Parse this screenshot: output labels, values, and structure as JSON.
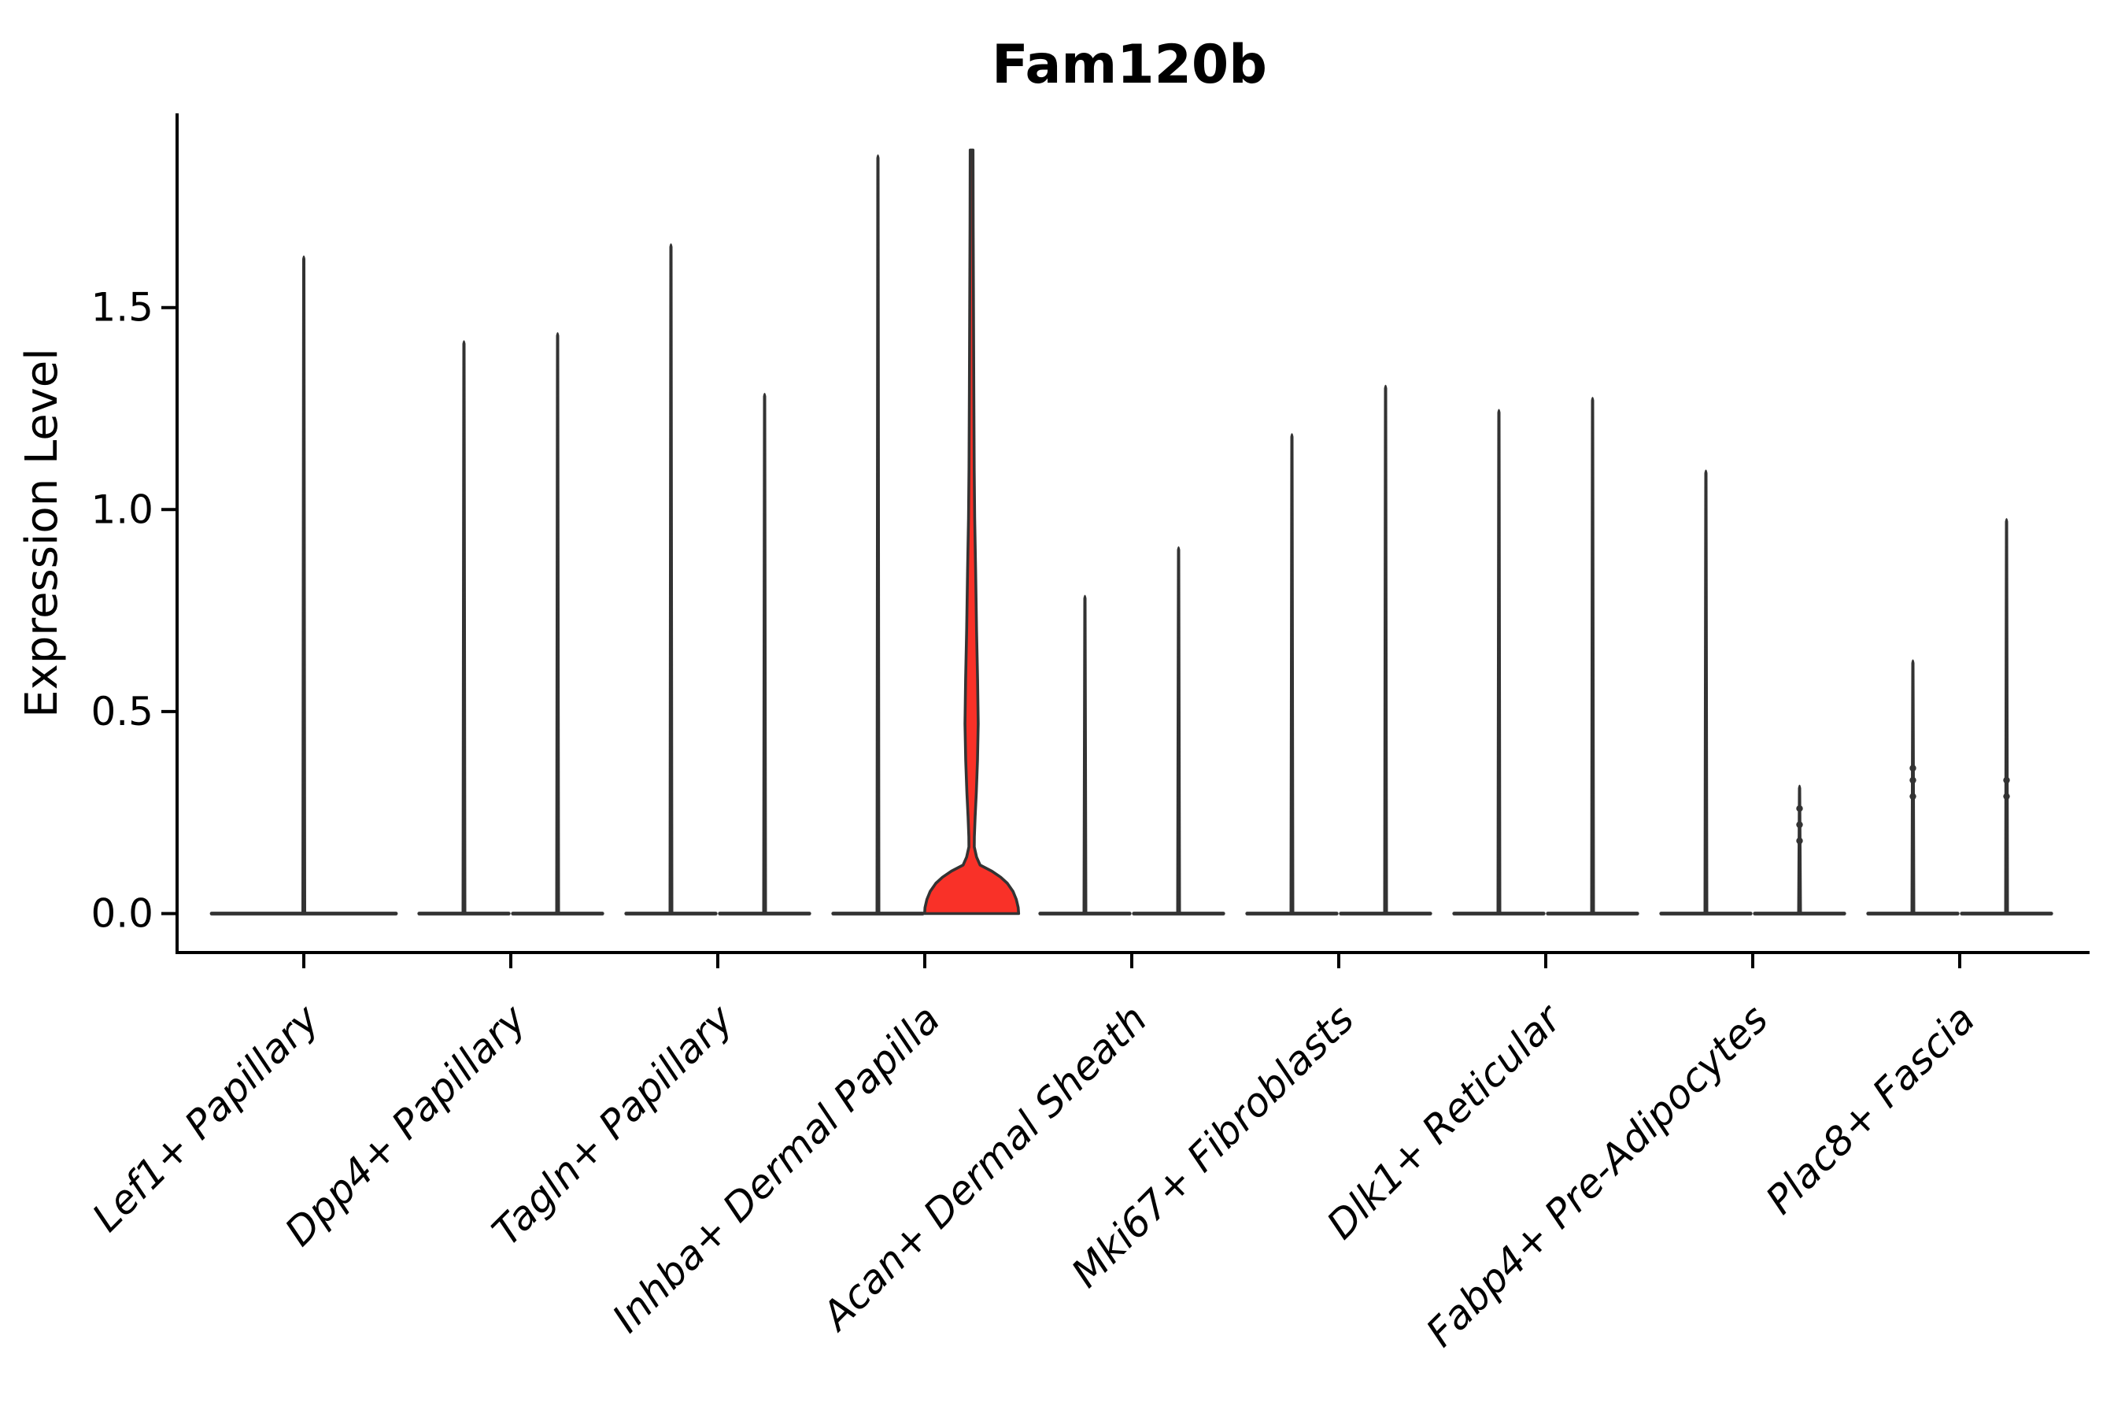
{
  "chart_data": {
    "type": "violin",
    "title": "Fam120b",
    "ylabel": "Expression Level",
    "xlabel": "",
    "ylim": [
      0,
      1.98
    ],
    "yticks": [
      {
        "label": "0.0",
        "value": 0.0
      },
      {
        "label": "0.5",
        "value": 0.5
      },
      {
        "label": "1.0",
        "value": 1.0
      },
      {
        "label": "1.5",
        "value": 1.5
      }
    ],
    "grid": false,
    "legend_position": "none",
    "style": {
      "violin_outline_color": "#333333",
      "axis_color": "#000000",
      "text_color": "#000000",
      "highlight_fill_color": "#f93128",
      "background_color": "#ffffff"
    },
    "categories": [
      {
        "label": "Lef1+ Papillary",
        "violins": [
          {
            "position": "center",
            "max_expression": 1.63,
            "highlighted": false,
            "point_values": []
          }
        ]
      },
      {
        "label": "Dpp4+ Papillary",
        "violins": [
          {
            "position": "left",
            "max_expression": 1.42,
            "highlighted": false,
            "point_values": []
          },
          {
            "position": "right",
            "max_expression": 1.44,
            "highlighted": false,
            "point_values": []
          }
        ]
      },
      {
        "label": "Tagln+ Papillary",
        "violins": [
          {
            "position": "left",
            "max_expression": 1.66,
            "highlighted": false,
            "point_values": []
          },
          {
            "position": "right",
            "max_expression": 1.29,
            "highlighted": false,
            "point_values": []
          }
        ]
      },
      {
        "label": "Inhba+ Dermal Papilla",
        "violins": [
          {
            "position": "left",
            "max_expression": 1.88,
            "highlighted": false,
            "point_values": []
          },
          {
            "position": "right",
            "max_expression": 1.89,
            "highlighted": true,
            "point_values": []
          }
        ]
      },
      {
        "label": "Acan+ Dermal Sheath",
        "violins": [
          {
            "position": "left",
            "max_expression": 0.79,
            "highlighted": false,
            "point_values": []
          },
          {
            "position": "right",
            "max_expression": 0.91,
            "highlighted": false,
            "point_values": []
          }
        ]
      },
      {
        "label": "Mki67+ Fibroblasts",
        "violins": [
          {
            "position": "left",
            "max_expression": 1.19,
            "highlighted": false,
            "point_values": []
          },
          {
            "position": "right",
            "max_expression": 1.31,
            "highlighted": false,
            "point_values": []
          }
        ]
      },
      {
        "label": "Dlk1+ Reticular",
        "violins": [
          {
            "position": "left",
            "max_expression": 1.25,
            "highlighted": false,
            "point_values": []
          },
          {
            "position": "right",
            "max_expression": 1.28,
            "highlighted": false,
            "point_values": []
          }
        ]
      },
      {
        "label": "Fabp4+ Pre-Adipocytes",
        "violins": [
          {
            "position": "left",
            "max_expression": 1.1,
            "highlighted": false,
            "point_values": []
          },
          {
            "position": "right",
            "max_expression": 0.32,
            "highlighted": false,
            "point_values": [
              0.26,
              0.22,
              0.18
            ]
          }
        ]
      },
      {
        "label": "Plac8+ Fascia",
        "violins": [
          {
            "position": "left",
            "max_expression": 0.63,
            "highlighted": false,
            "point_values": [
              0.36,
              0.33,
              0.29
            ]
          },
          {
            "position": "right",
            "max_expression": 0.98,
            "highlighted": false,
            "point_values": [
              0.33,
              0.29
            ]
          }
        ]
      }
    ],
    "highlighted_violin_profile_note": "pairs of [expression_level, half_width_fraction_of_violin_slot] describing the red Inhba+ Dermal Papilla violin outline",
    "highlighted_violin_profile": [
      [
        1.89,
        0.03
      ],
      [
        1.7,
        0.034
      ],
      [
        1.5,
        0.04
      ],
      [
        1.3,
        0.047
      ],
      [
        1.1,
        0.055
      ],
      [
        0.98,
        0.065
      ],
      [
        0.85,
        0.085
      ],
      [
        0.7,
        0.105
      ],
      [
        0.58,
        0.128
      ],
      [
        0.47,
        0.14
      ],
      [
        0.38,
        0.125
      ],
      [
        0.3,
        0.1
      ],
      [
        0.24,
        0.075
      ],
      [
        0.19,
        0.058
      ],
      [
        0.165,
        0.057
      ],
      [
        0.14,
        0.105
      ],
      [
        0.12,
        0.18
      ],
      [
        0.105,
        0.43
      ],
      [
        0.09,
        0.62
      ],
      [
        0.075,
        0.76
      ],
      [
        0.055,
        0.88
      ],
      [
        0.035,
        0.95
      ],
      [
        0.015,
        0.99
      ],
      [
        0.0,
        1.0
      ]
    ]
  }
}
